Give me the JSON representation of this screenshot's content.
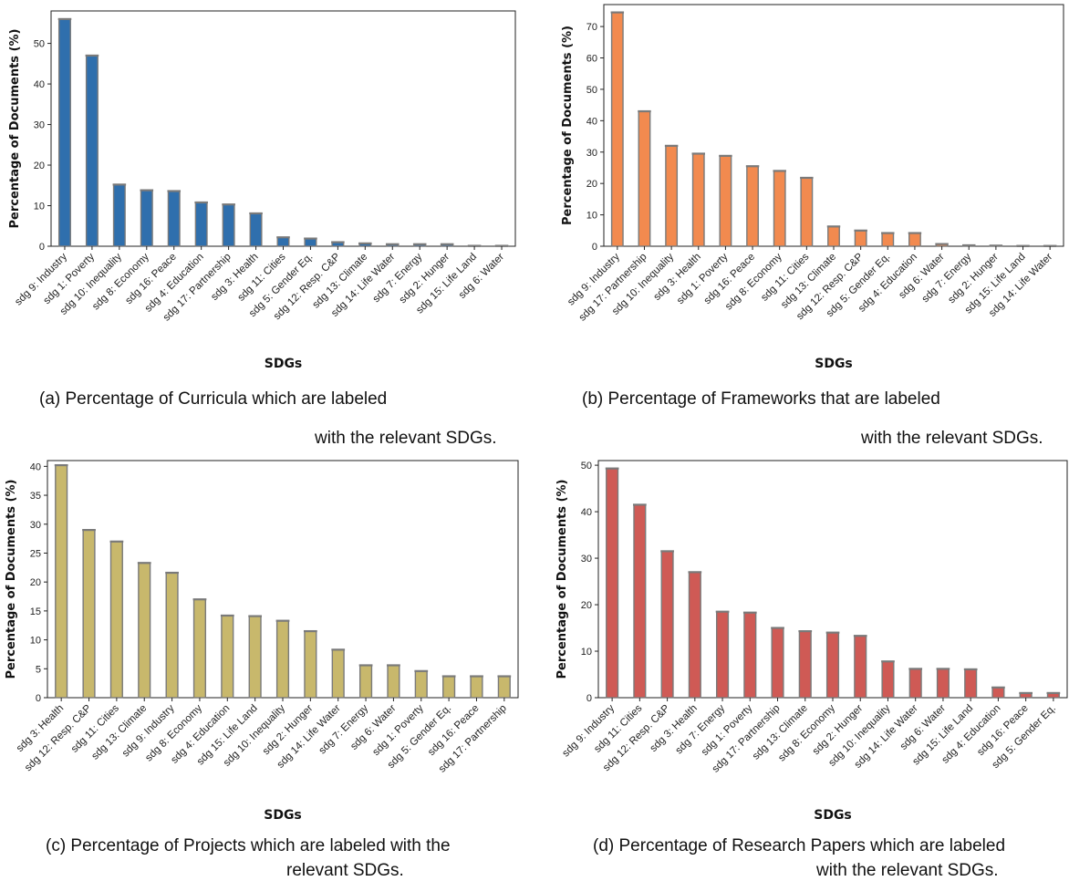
{
  "chart_data": [
    {
      "type": "bar",
      "xlabel": "SDGs",
      "ylabel": "Percentage of Documents (%)",
      "ylim": [
        0,
        58
      ],
      "yticks": [
        0,
        10,
        20,
        30,
        40,
        50
      ],
      "color": "#2f6fad",
      "caption_lines": [
        "(a) Percentage of Curricula which are labeled",
        "with the relevant SDGs."
      ],
      "categories": [
        "sdg 9: Industry",
        "sdg 1: Poverty",
        "sdg 10: Inequality",
        "sdg 8: Economy",
        "sdg 16: Peace",
        "sdg 4: Education",
        "sdg 17: Partnership",
        "sdg 3: Health",
        "sdg 11: Cities",
        "sdg 5: Gender Eq.",
        "sdg 12: Resp. C&P",
        "sdg 13: Climate",
        "sdg 14: Life Water",
        "sdg 7: Energy",
        "sdg 2: Hunger",
        "sdg 15: Life Land",
        "sdg 6: Water"
      ],
      "values": [
        56,
        47,
        15.2,
        13.8,
        13.6,
        10.8,
        10.3,
        8.1,
        2.2,
        1.9,
        1.0,
        0.7,
        0.5,
        0.5,
        0.5,
        0.1,
        0.1
      ]
    },
    {
      "type": "bar",
      "xlabel": "SDGs",
      "ylabel": "Percentage of Documents (%)",
      "ylim": [
        0,
        77
      ],
      "yticks": [
        0,
        10,
        20,
        30,
        40,
        50,
        60,
        70
      ],
      "color": "#f28a4f",
      "caption_lines": [
        "(b) Percentage of Frameworks that are labeled",
        "with the relevant SDGs."
      ],
      "categories": [
        "sdg 9: Industry",
        "sdg 17: Partnership",
        "sdg 10: Inequality",
        "sdg 3: Health",
        "sdg 1: Poverty",
        "sdg 16: Peace",
        "sdg 8: Economy",
        "sdg 11: Cities",
        "sdg 13: Climate",
        "sdg 12: Resp. C&P",
        "sdg 5: Gender Eq.",
        "sdg 4: Education",
        "sdg 6: Water",
        "sdg 7: Energy",
        "sdg 2: Hunger",
        "sdg 15: Life Land",
        "sdg 14: Life Water"
      ],
      "values": [
        74.5,
        43,
        32,
        29.5,
        28.8,
        25.5,
        24,
        21.8,
        6.3,
        5,
        4.2,
        4.2,
        0.7,
        0.3,
        0.2,
        0.1,
        0.1
      ]
    },
    {
      "type": "bar",
      "xlabel": "SDGs",
      "ylabel": "Percentage of Documents (%)",
      "ylim": [
        0,
        41
      ],
      "yticks": [
        0,
        5,
        10,
        15,
        20,
        25,
        30,
        35,
        40
      ],
      "color": "#c8b86c",
      "caption_lines": [
        "(c) Percentage of Projects which are labeled with the",
        "relevant SDGs."
      ],
      "categories": [
        "sdg 3: Health",
        "sdg 12: Resp. C&P",
        "sdg 11: Cities",
        "sdg 13: Climate",
        "sdg 9: Industry",
        "sdg 8: Economy",
        "sdg 4: Education",
        "sdg 15: Life Land",
        "sdg 10: Inequality",
        "sdg 2: Hunger",
        "sdg 14: Life Water",
        "sdg 7: Energy",
        "sdg 6: Water",
        "sdg 1: Poverty",
        "sdg 5: Gender Eq.",
        "sdg 16: Peace",
        "sdg 17: Partnership"
      ],
      "values": [
        40.2,
        29,
        27,
        23.3,
        21.6,
        17,
        14.2,
        14.1,
        13.3,
        11.5,
        8.3,
        5.6,
        5.6,
        4.6,
        3.7,
        3.7,
        3.7
      ]
    },
    {
      "type": "bar",
      "xlabel": "SDGs",
      "ylabel": "Percentage of Documents (%)",
      "ylim": [
        0,
        51
      ],
      "yticks": [
        0,
        10,
        20,
        30,
        40,
        50
      ],
      "color": "#cf5a55",
      "caption_lines": [
        "(d) Percentage of Research Papers which are labeled",
        "with the relevant SDGs."
      ],
      "categories": [
        "sdg 9: Industry",
        "sdg 11: Cities",
        "sdg 12: Resp. C&P",
        "sdg 3: Health",
        "sdg 7: Energy",
        "sdg 1: Poverty",
        "sdg 17: Partnership",
        "sdg 13: Climate",
        "sdg 8: Economy",
        "sdg 2: Hunger",
        "sdg 10: Inequality",
        "sdg 14: Life Water",
        "sdg 6: Water",
        "sdg 15: Life Land",
        "sdg 4: Education",
        "sdg 16: Peace",
        "sdg 5: Gender Eq."
      ],
      "values": [
        49.3,
        41.5,
        31.5,
        27,
        18.5,
        18.3,
        15,
        14.3,
        14,
        13.3,
        7.8,
        6.2,
        6.2,
        6.1,
        2.2,
        1,
        1
      ]
    }
  ]
}
